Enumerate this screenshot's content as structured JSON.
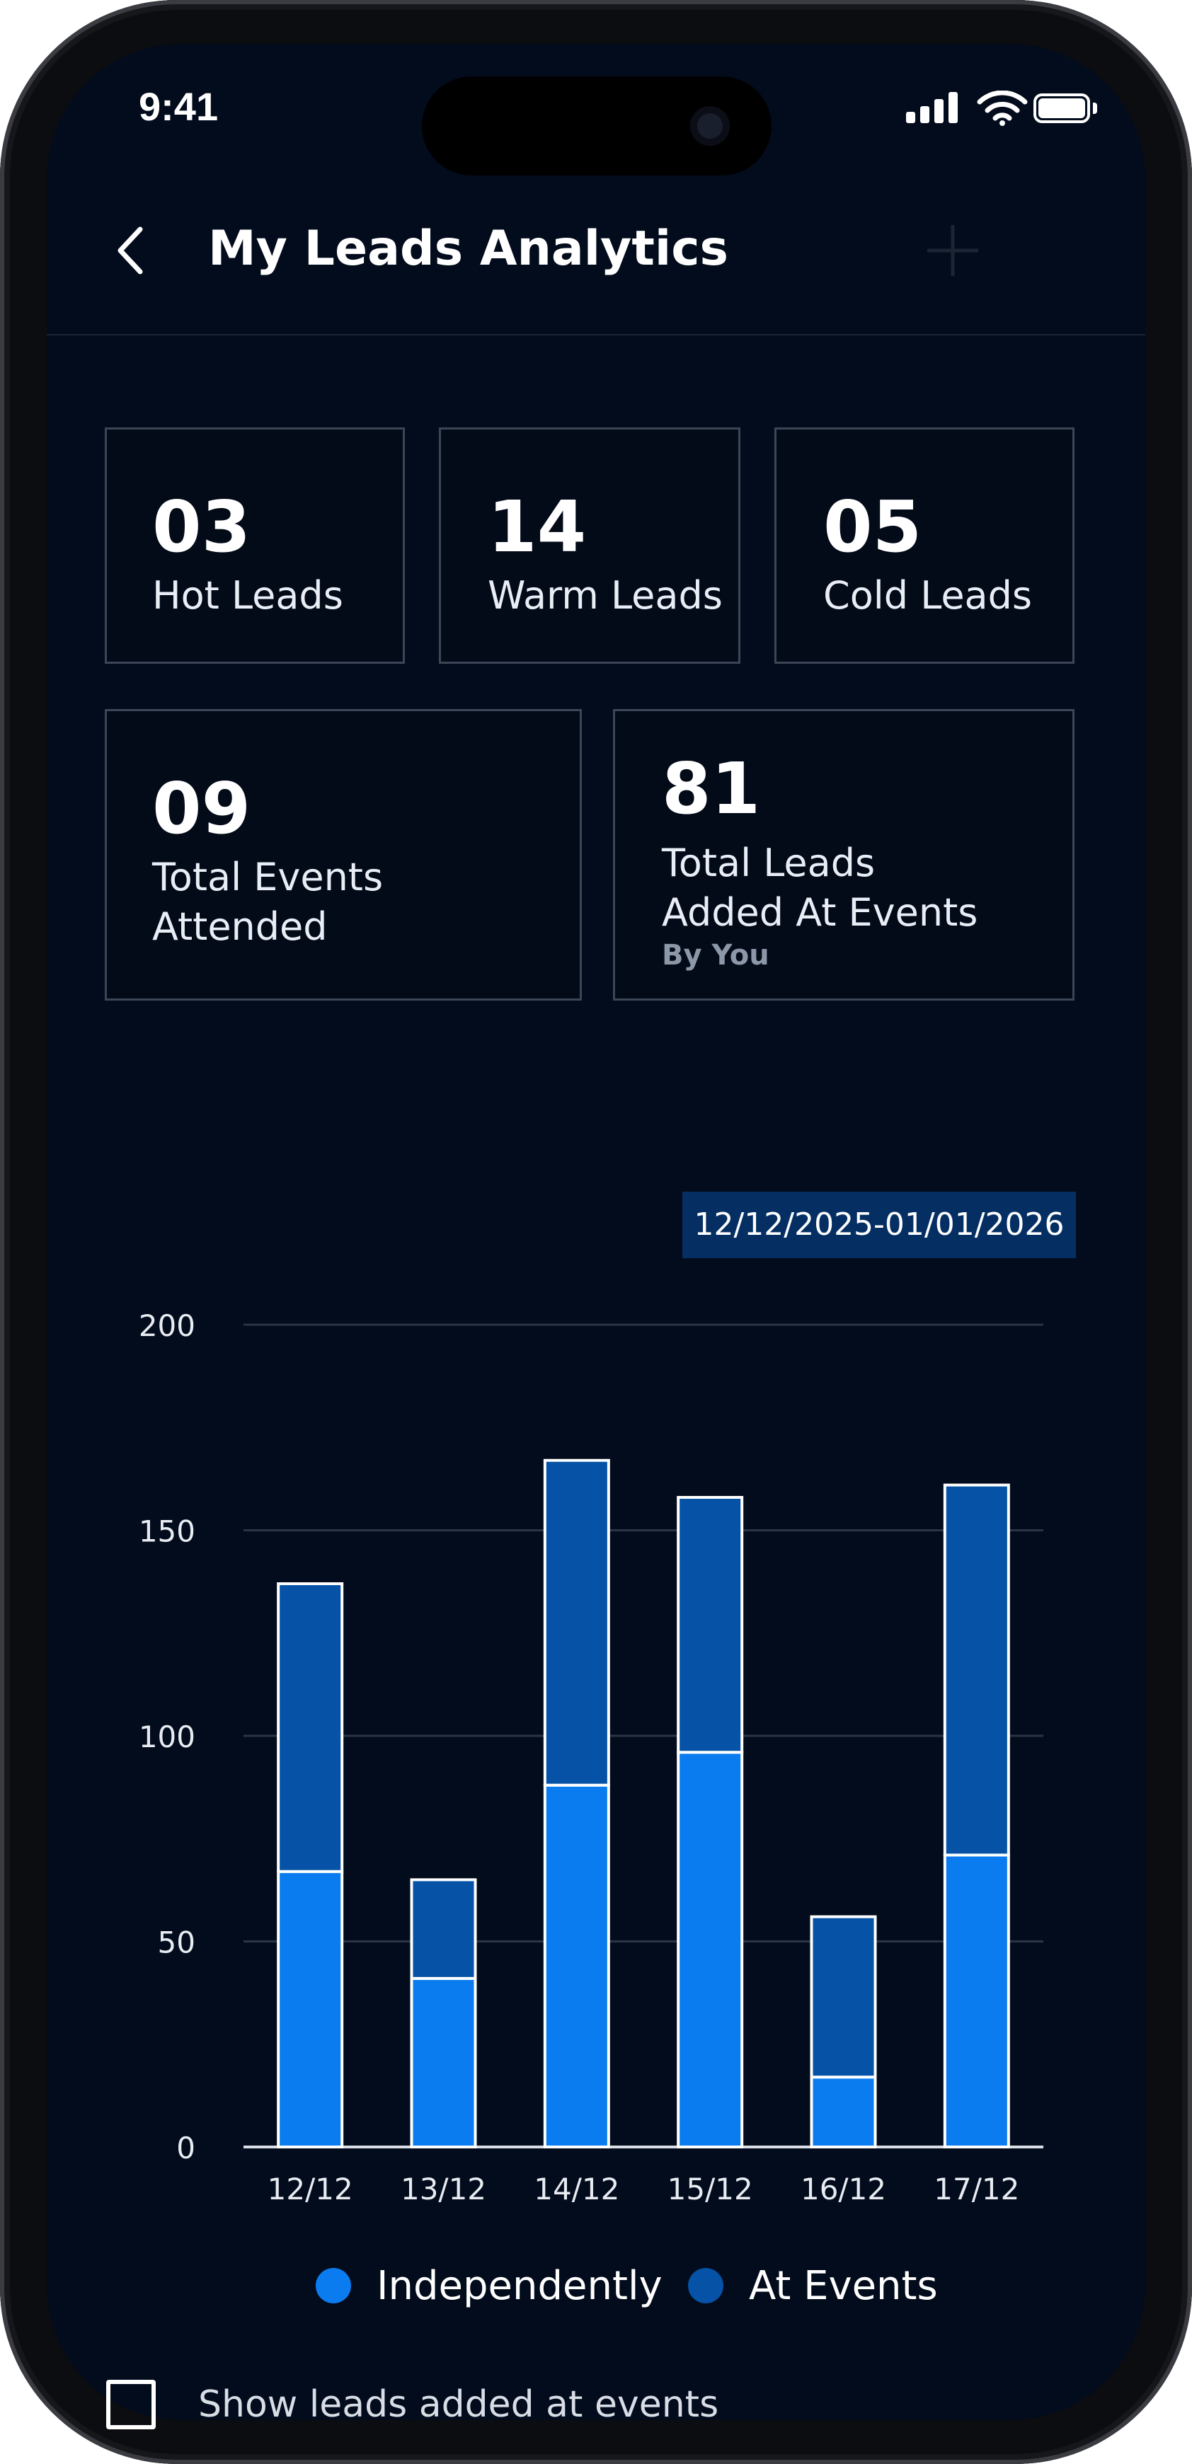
{
  "status_bar": {
    "time": "9:41"
  },
  "header": {
    "title": "My Leads Analytics",
    "back_icon": "chevron-left-icon",
    "add_icon": "plus-icon"
  },
  "stats": {
    "hot": {
      "value": "03",
      "label": "Hot Leads"
    },
    "warm": {
      "value": "14",
      "label": "Warm Leads"
    },
    "cold": {
      "value": "05",
      "label": "Cold Leads"
    },
    "events": {
      "value": "09",
      "label_line1": "Total Events",
      "label_line2": "Attended"
    },
    "leads_at_events": {
      "value": "81",
      "label_line1": "Total Leads",
      "label_line2": "Added At Events",
      "sub": "By You"
    }
  },
  "date_range": "12/12/2025-01/01/2026",
  "chart_data": {
    "type": "bar",
    "stacked": true,
    "categories": [
      "12/12",
      "13/12",
      "14/12",
      "15/12",
      "16/12",
      "17/12"
    ],
    "series": [
      {
        "name": "Independently",
        "color": "#0a7cf0",
        "values": [
          67,
          41,
          88,
          96,
          17,
          71
        ]
      },
      {
        "name": "At Events",
        "color": "#0552a6",
        "values": [
          70,
          24,
          79,
          62,
          39,
          90
        ]
      }
    ],
    "ylim": [
      0,
      200
    ],
    "yticks": [
      0,
      50,
      100,
      150,
      200
    ],
    "grid": true,
    "legend": "bottom"
  },
  "legend": {
    "independently": "Independently",
    "at_events": "At Events"
  },
  "toggle": {
    "label": "Show leads added at events",
    "checked": false
  }
}
